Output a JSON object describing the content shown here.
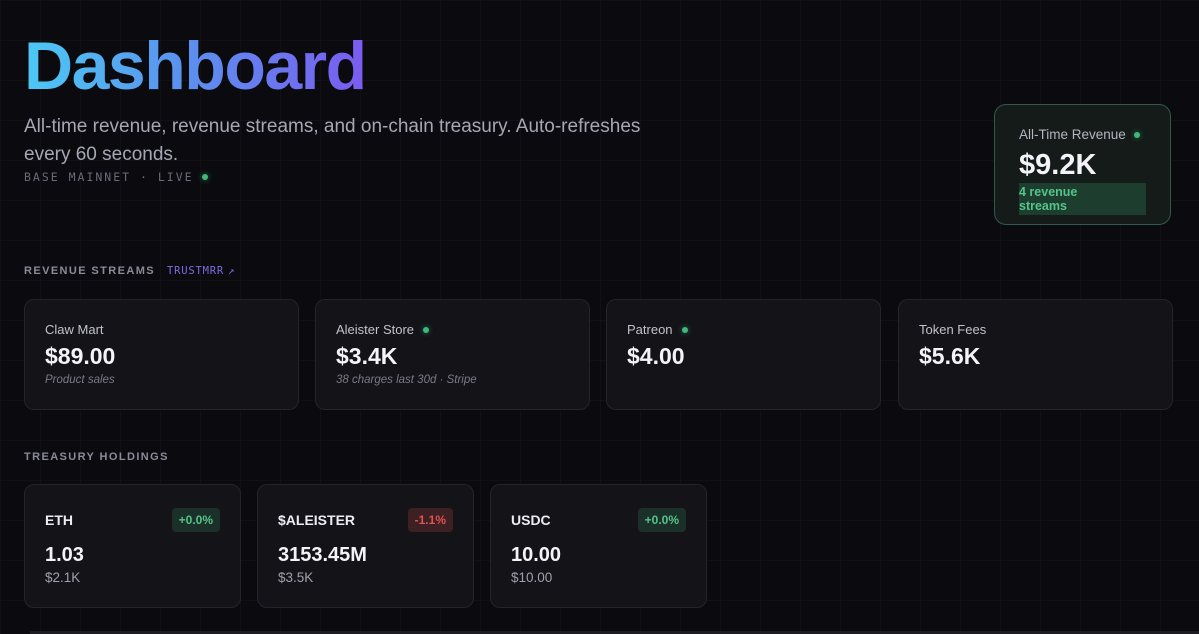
{
  "header": {
    "title": "Dashboard",
    "subtitle": "All-time revenue, revenue streams, and on-chain treasury. Auto-refreshes every 60 seconds.",
    "network": "BASE MAINNET · LIVE"
  },
  "all_time": {
    "label": "All-Time Revenue",
    "value": "$9.2K",
    "streams": "4 revenue streams"
  },
  "revenue_streams": {
    "label": "REVENUE STREAMS",
    "link": "TRUSTMRR",
    "link_icon": "↗",
    "items": [
      {
        "name": "Claw Mart",
        "value": "$89.00",
        "note": "Product sales",
        "live": false
      },
      {
        "name": "Aleister Store",
        "value": "$3.4K",
        "note": "38 charges last 30d · Stripe",
        "live": true
      },
      {
        "name": "Patreon",
        "value": "$4.00",
        "note": "",
        "live": true
      },
      {
        "name": "Token Fees",
        "value": "$5.6K",
        "note": "",
        "live": false
      }
    ]
  },
  "treasury": {
    "label": "TREASURY HOLDINGS",
    "items": [
      {
        "symbol": "ETH",
        "change": "+0.0%",
        "direction": "up",
        "amount": "1.03",
        "usd": "$2.1K"
      },
      {
        "symbol": "$ALEISTER",
        "change": "-1.1%",
        "direction": "down",
        "amount": "3153.45M",
        "usd": "$3.5K"
      },
      {
        "symbol": "USDC",
        "change": "+0.0%",
        "direction": "up",
        "amount": "10.00",
        "usd": "$10.00"
      }
    ]
  },
  "colors": {
    "background": "#0b0b0f",
    "live_green": "#3fb97a",
    "negative_red": "#e0534f",
    "accent_purple": "#7b6de0"
  }
}
